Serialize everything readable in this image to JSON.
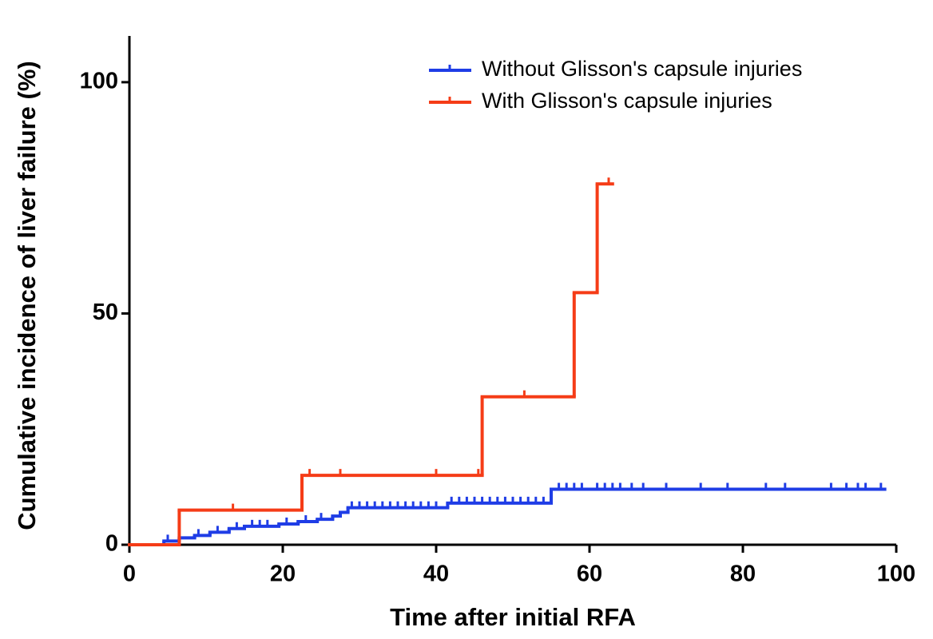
{
  "chart_data": {
    "type": "step",
    "xlabel": "Time after initial RFA",
    "ylabel": "Cumulative incidence of liver failure (%)",
    "xlim": [
      0,
      100
    ],
    "xticks": [
      0,
      20,
      40,
      60,
      80,
      100
    ],
    "ylim": [
      0,
      110
    ],
    "yticks": [
      0,
      50,
      100
    ],
    "legend": "upper right",
    "series": [
      {
        "name": "Without Glisson's capsule injuries",
        "color": "#1f3de6",
        "x": [
          0,
          4.5,
          6.5,
          8.5,
          10.5,
          13,
          15,
          19.5,
          22,
          24.5,
          26.5,
          27.5,
          28.5,
          41.5,
          55,
          98.5
        ],
        "values": [
          0,
          0.8,
          1.5,
          2,
          2.7,
          3.5,
          4,
          4.5,
          5,
          5.5,
          6.2,
          7,
          8,
          9,
          12,
          12
        ],
        "censored": [
          5,
          9,
          11.5,
          14,
          16,
          17,
          18,
          20.5,
          23,
          25,
          29,
          30,
          31,
          32,
          33,
          34,
          35,
          36,
          37,
          38,
          39,
          40,
          42,
          43,
          44,
          45,
          46,
          47,
          48,
          49,
          50,
          51,
          52,
          53,
          54,
          56,
          57,
          58,
          59,
          61,
          62,
          63,
          64,
          65.5,
          67,
          70,
          74.5,
          78,
          83,
          85.5,
          91.5,
          93.5,
          95,
          96,
          98
        ]
      },
      {
        "name": "With Glisson's capsule injuries",
        "color": "#f53c17",
        "x": [
          0,
          6.5,
          22.5,
          46,
          58,
          61,
          63
        ],
        "values": [
          0,
          7.5,
          15,
          32,
          54.5,
          78,
          78
        ],
        "censored": [
          13.5,
          23.5,
          27.5,
          40,
          45.5,
          51.5,
          62.5
        ]
      }
    ]
  }
}
